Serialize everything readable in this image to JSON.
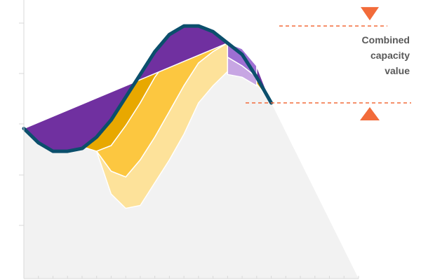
{
  "chart_data": {
    "type": "area",
    "title": "",
    "xlabel": "",
    "ylabel": "",
    "grid": false,
    "legend": "none",
    "x": [
      0,
      1,
      2,
      3,
      4,
      5,
      6,
      7,
      8,
      9,
      10,
      11,
      12,
      13,
      14,
      15,
      16,
      17,
      18,
      19,
      20,
      21,
      22,
      23
    ],
    "xlim": [
      0,
      23
    ],
    "ylim": [
      0,
      100
    ],
    "series": [
      {
        "values": [
          63,
          58,
          55,
          55,
          56,
          60,
          66,
          74,
          82,
          90,
          96,
          99,
          99,
          97,
          93,
          89,
          81,
          72,
          null,
          null,
          null,
          null,
          null,
          null
        ],
        "color": "#0b4f6c"
      },
      {
        "values": [
          null,
          null,
          null,
          null,
          null,
          55,
          57,
          64,
          72,
          81,
          88,
          93,
          95,
          96,
          92,
          null,
          null,
          null,
          null,
          null,
          null,
          null,
          null,
          null
        ],
        "color": "#e8a800"
      },
      {
        "values": [
          null,
          null,
          null,
          null,
          null,
          55,
          48,
          46,
          52,
          60,
          69,
          78,
          86,
          90,
          93,
          null,
          null,
          null,
          null,
          null,
          null,
          null,
          null,
          null
        ],
        "color": "#fcc740"
      },
      {
        "values": [
          null,
          null,
          null,
          null,
          null,
          55,
          40,
          35,
          36,
          44,
          52,
          61,
          72,
          78,
          83,
          null,
          null,
          null,
          null,
          null,
          null,
          null,
          null,
          null
        ],
        "color": "#fde29a"
      },
      {
        "values": [
          null,
          null,
          null,
          null,
          null,
          null,
          null,
          null,
          null,
          null,
          null,
          null,
          null,
          null,
          93,
          91,
          85,
          null,
          null,
          null,
          null,
          null,
          null,
          null
        ],
        "color": "#7030a0"
      },
      {
        "values": [
          null,
          null,
          null,
          null,
          null,
          null,
          null,
          null,
          null,
          null,
          null,
          null,
          null,
          null,
          88,
          85,
          81,
          null,
          null,
          null,
          null,
          null,
          null,
          null
        ],
        "color": "#9e6fd3"
      },
      {
        "values": [
          null,
          null,
          null,
          null,
          null,
          null,
          null,
          null,
          null,
          null,
          null,
          null,
          null,
          null,
          82,
          81,
          78,
          null,
          null,
          null,
          null,
          null,
          null,
          null
        ],
        "color": "#c7a6e3"
      },
      {
        "values": [
          null,
          null,
          null,
          null,
          null,
          null,
          null,
          null,
          null,
          null,
          null,
          null,
          null,
          72,
          72,
          72,
          72,
          72,
          null,
          null,
          null,
          null,
          null,
          null
        ],
        "color": "#f2f2f2"
      }
    ],
    "annotation": {
      "lines": [
        "Combined",
        "capacity",
        "value"
      ],
      "upper_value": 99,
      "lower_value": 72,
      "color": "#f26b3a"
    }
  }
}
